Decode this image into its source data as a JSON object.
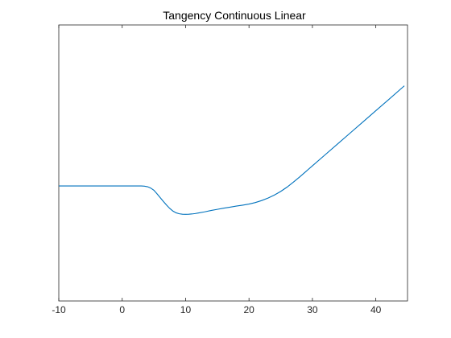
{
  "chart_data": {
    "type": "line",
    "title": "Tangency Continuous Linear",
    "xlabel": "",
    "ylabel": "",
    "xlim": [
      -10,
      45
    ],
    "ylim": [
      -1,
      1.88
    ],
    "grid": false,
    "box": true,
    "x_ticks": [
      -10,
      0,
      10,
      20,
      30,
      40
    ],
    "x_tick_labels": [
      "-10",
      "0",
      "10",
      "20",
      "30",
      "40"
    ],
    "y_tick_labels": [],
    "series": [
      {
        "color": "#0072BD",
        "x": [
          -10,
          -5,
          0,
          3,
          3.5,
          4,
          4.5,
          5,
          5.5,
          6,
          6.5,
          7,
          7.5,
          8,
          8.5,
          9,
          9.5,
          10,
          10.5,
          11,
          11.5,
          12,
          13,
          14,
          15,
          16,
          17,
          18,
          19,
          20,
          21,
          22,
          23,
          24,
          25,
          26,
          27,
          28,
          30,
          32,
          34,
          36,
          38,
          40,
          42,
          44.5
        ],
        "y": [
          0.2,
          0.2,
          0.2,
          0.2,
          0.198,
          0.192,
          0.178,
          0.155,
          0.118,
          0.078,
          0.038,
          0.0,
          -0.034,
          -0.062,
          -0.08,
          -0.09,
          -0.095,
          -0.096,
          -0.095,
          -0.092,
          -0.088,
          -0.082,
          -0.07,
          -0.056,
          -0.044,
          -0.032,
          -0.021,
          -0.01,
          0.0,
          0.011,
          0.027,
          0.048,
          0.074,
          0.105,
          0.143,
          0.188,
          0.24,
          0.295,
          0.41,
          0.525,
          0.64,
          0.755,
          0.87,
          0.985,
          1.1,
          1.245
        ]
      }
    ]
  }
}
